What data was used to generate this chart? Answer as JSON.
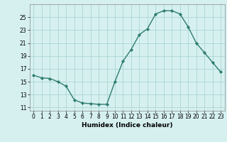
{
  "x": [
    0,
    1,
    2,
    3,
    4,
    5,
    6,
    7,
    8,
    9,
    10,
    11,
    12,
    13,
    14,
    15,
    16,
    17,
    18,
    19,
    20,
    21,
    22,
    23
  ],
  "y": [
    16.0,
    15.6,
    15.5,
    15.0,
    14.3,
    12.2,
    11.7,
    11.6,
    11.5,
    11.5,
    15.0,
    18.2,
    20.0,
    22.3,
    23.2,
    25.5,
    26.0,
    26.0,
    25.5,
    23.5,
    21.0,
    19.5,
    18.0,
    16.5
  ],
  "xlabel": "Humidex (Indice chaleur)",
  "line_color": "#2e7d6e",
  "marker_color": "#2e7d6e",
  "bg_color": "#d6f0f0",
  "grid_color": "#b0d8d8",
  "xlim": [
    -0.5,
    23.5
  ],
  "ylim": [
    10.5,
    27.0
  ],
  "yticks": [
    11,
    13,
    15,
    17,
    19,
    21,
    23,
    25
  ],
  "xticks": [
    0,
    1,
    2,
    3,
    4,
    5,
    6,
    7,
    8,
    9,
    10,
    11,
    12,
    13,
    14,
    15,
    16,
    17,
    18,
    19,
    20,
    21,
    22,
    23
  ],
  "tick_fontsize": 5.5,
  "xlabel_fontsize": 6.5,
  "linewidth": 1.0,
  "markersize": 2.2
}
